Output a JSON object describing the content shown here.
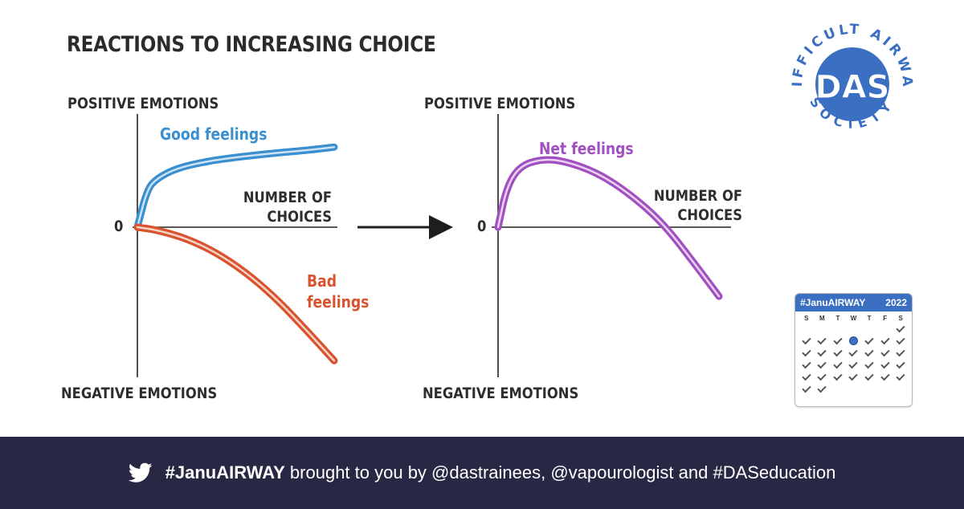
{
  "chart_data": [
    {
      "type": "line",
      "title": "REACTIONS TO INCREASING CHOICE",
      "ylabel_top": "POSITIVE EMOTIONS",
      "ylabel_bottom": "NEGATIVE EMOTIONS",
      "xlabel": "NUMBER OF CHOICES",
      "origin_label": "0",
      "series": [
        {
          "name": "Good feelings",
          "color": "#3a8fd1",
          "x": [
            0,
            0.05,
            0.1,
            0.2,
            0.35,
            0.5,
            0.7,
            0.85,
            1.0
          ],
          "y": [
            0,
            0.45,
            0.58,
            0.7,
            0.78,
            0.83,
            0.88,
            0.91,
            0.95
          ]
        },
        {
          "name": "Bad feelings",
          "color": "#d9532e",
          "x": [
            0,
            0.1,
            0.25,
            0.4,
            0.55,
            0.7,
            0.85,
            1.0
          ],
          "y": [
            0,
            -0.02,
            -0.08,
            -0.18,
            -0.32,
            -0.5,
            -0.72,
            -0.95
          ]
        }
      ]
    },
    {
      "type": "line",
      "ylabel_top": "POSITIVE EMOTIONS",
      "ylabel_bottom": "NEGATIVE EMOTIONS",
      "xlabel": "NUMBER OF CHOICES",
      "origin_label": "0",
      "series": [
        {
          "name": "Net feelings",
          "color": "#a24fc2",
          "x": [
            0,
            0.04,
            0.1,
            0.2,
            0.3,
            0.45,
            0.6,
            0.75,
            0.9,
            1.0
          ],
          "y": [
            0,
            0.6,
            0.9,
            1.0,
            0.97,
            0.8,
            0.48,
            0.05,
            -0.4,
            -0.7
          ]
        }
      ]
    }
  ],
  "logo": {
    "ring_text_top": "DIFFICULT AIRWAY",
    "ring_text_bottom": "SOCIETY",
    "initials": "DAS",
    "color": "#3a6fc1"
  },
  "calendar": {
    "title": "#JanuAIRWAY",
    "year": "2022",
    "days": [
      "S",
      "M",
      "T",
      "W",
      "T",
      "F",
      "S"
    ],
    "first_weekday": 6,
    "day_count": 31,
    "today": 5
  },
  "footer": {
    "hashtag": "#JanuAIRWAY",
    "text": " brought to you by @dastrainees, @vapourologist and #DASeducation",
    "bg": "#282845"
  }
}
